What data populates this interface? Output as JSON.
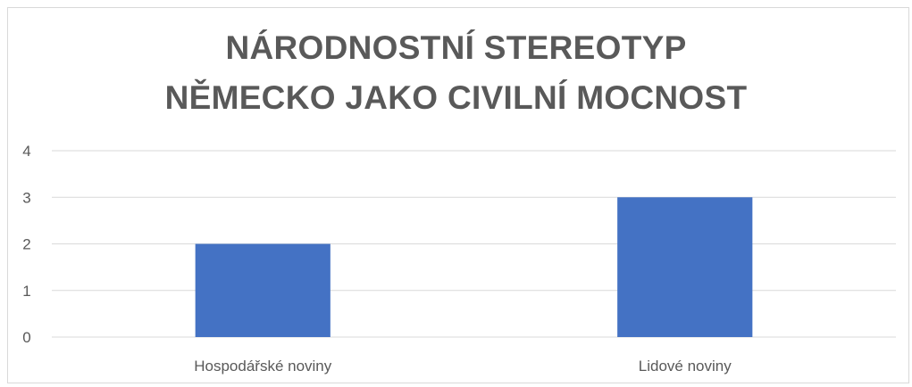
{
  "chart_data": {
    "type": "bar",
    "title": "NÁRODNOSTNÍ STEREOTYP NĚMECKO JAKO CIVILNÍ MOCNOST",
    "title_lines": [
      "NÁRODNOSTNÍ STEREOTYP",
      "NĚMECKO JAKO CIVILNÍ MOCNOST"
    ],
    "categories": [
      "Hospodářské noviny",
      "Lidové noviny"
    ],
    "values": [
      2,
      3
    ],
    "xlabel": "",
    "ylabel": "",
    "ylim": [
      0,
      4
    ],
    "yticks": [
      "0",
      "1",
      "2",
      "3",
      "4"
    ],
    "grid": true,
    "legend": "none",
    "bar_color": "#4472c4",
    "grid_color": "#d9d9d9",
    "text_color": "#595959"
  }
}
